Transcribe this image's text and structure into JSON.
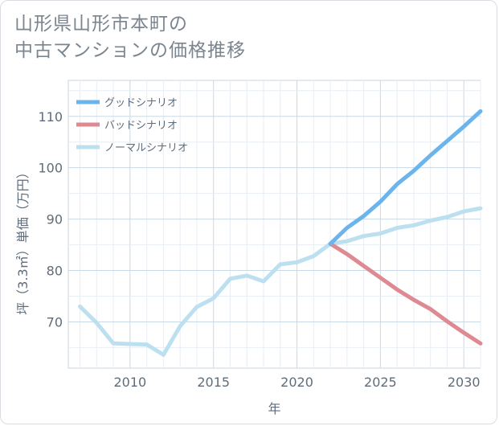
{
  "title_line1": "山形県山形市本町の",
  "title_line2": "中古マンションの価格推移",
  "chart_data": {
    "type": "line",
    "xlabel": "年",
    "ylabel": "坪（3.3㎡）単価（万円）",
    "xlim": [
      2006.3,
      2031
    ],
    "ylim": [
      61,
      117
    ],
    "x_ticks": [
      2010,
      2015,
      2020,
      2025,
      2030
    ],
    "y_ticks": [
      70,
      80,
      90,
      100,
      110
    ],
    "grid": true,
    "legend_position": "top-left",
    "series": [
      {
        "name": "グッドシナリオ",
        "color": "#6cb5ec",
        "x": [
          2022,
          2023,
          2024,
          2025,
          2026,
          2027,
          2028,
          2029,
          2030,
          2031
        ],
        "y": [
          85.2,
          88.3,
          90.6,
          93.4,
          96.8,
          99.4,
          102.4,
          105.2,
          108.0,
          111.0
        ]
      },
      {
        "name": "バッドシナリオ",
        "color": "#de8a92",
        "x": [
          2022,
          2023,
          2024,
          2025,
          2026,
          2027,
          2028,
          2029,
          2030,
          2031
        ],
        "y": [
          85.2,
          83.2,
          80.9,
          78.6,
          76.3,
          74.3,
          72.5,
          70.1,
          67.9,
          65.8
        ]
      },
      {
        "name": "ノーマルシナリオ",
        "color": "#bde0f0",
        "x": [
          2007,
          2008,
          2009,
          2010,
          2011,
          2012,
          2013,
          2014,
          2015,
          2016,
          2017,
          2018,
          2019,
          2020,
          2021,
          2022,
          2023,
          2024,
          2025,
          2026,
          2027,
          2028,
          2029,
          2030,
          2031
        ],
        "y": [
          73.0,
          69.8,
          65.8,
          65.7,
          65.6,
          63.6,
          69.2,
          72.9,
          74.6,
          78.4,
          79.0,
          77.9,
          81.2,
          81.6,
          82.8,
          85.2,
          85.7,
          86.7,
          87.2,
          88.3,
          88.8,
          89.7,
          90.4,
          91.5,
          92.1
        ]
      }
    ]
  }
}
